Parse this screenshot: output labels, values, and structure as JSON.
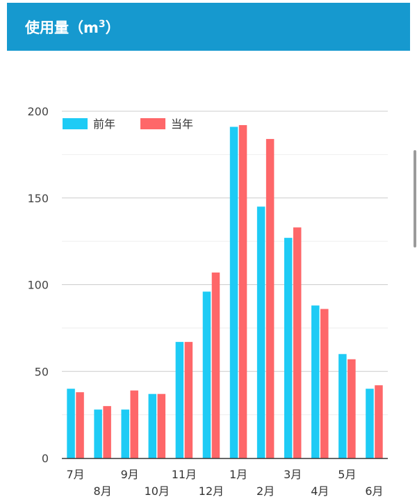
{
  "header": {
    "title_prefix": "使用量（m",
    "title_sup": "3",
    "title_suffix": "）"
  },
  "chart_data": {
    "type": "bar",
    "categories": [
      "7月",
      "8月",
      "9月",
      "10月",
      "11月",
      "12月",
      "1月",
      "2月",
      "3月",
      "4月",
      "5月",
      "6月"
    ],
    "series": [
      {
        "name": "前年",
        "color": "#1ecbf5",
        "values": [
          40,
          28,
          28,
          37,
          67,
          96,
          191,
          145,
          127,
          88,
          60,
          40
        ]
      },
      {
        "name": "当年",
        "color": "#fe6769",
        "values": [
          38,
          30,
          39,
          37,
          67,
          107,
          192,
          184,
          133,
          86,
          57,
          42
        ]
      }
    ],
    "ylim": [
      0,
      200
    ],
    "yticks": [
      0,
      50,
      100,
      150,
      200
    ],
    "grid": true,
    "legend": "top-left"
  }
}
